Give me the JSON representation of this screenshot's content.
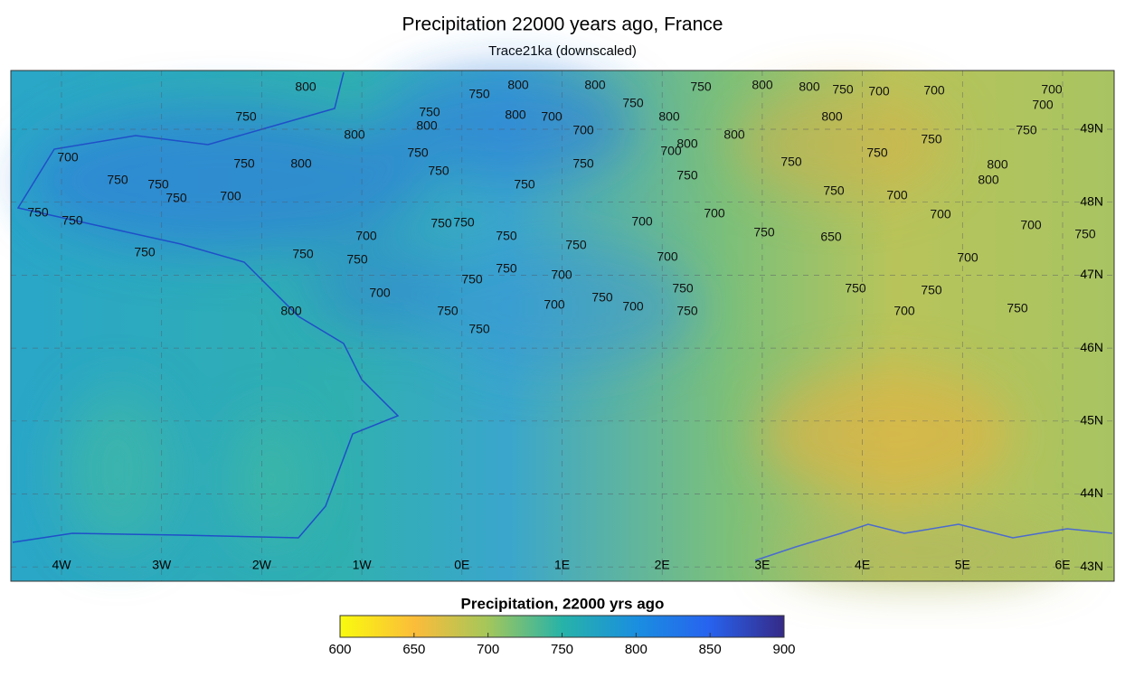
{
  "title": "Precipitation 22000 years ago, France",
  "subtitle": "Trace21ka (downscaled)",
  "lon_labels": [
    "4W",
    "3W",
    "2W",
    "1W",
    "0E",
    "1E",
    "2E",
    "3E",
    "4E",
    "5E",
    "6E"
  ],
  "lat_labels": [
    "49N",
    "48N",
    "47N",
    "46N",
    "45N",
    "44N",
    "43N"
  ],
  "contour_labels": [
    800,
    750,
    800,
    800,
    750,
    800,
    800,
    750,
    700,
    700,
    700,
    700,
    750,
    750,
    800,
    800,
    800,
    700,
    700,
    750,
    800,
    800,
    800,
    800,
    750,
    750,
    700,
    750,
    750,
    750,
    800,
    750,
    750,
    750,
    750,
    700,
    750,
    750,
    750,
    800,
    800,
    750,
    750,
    750,
    700,
    700,
    750,
    750,
    750,
    750,
    700,
    700,
    750,
    750,
    700,
    700,
    750,
    750,
    750,
    700,
    750,
    750,
    700,
    750,
    700,
    750,
    650,
    700,
    700,
    750,
    800,
    750,
    750,
    700,
    700,
    750,
    750,
    700,
    750,
    750
  ],
  "colorbar": {
    "label": "Precipitation, 22000 yrs ago",
    "lim": [
      600,
      900
    ],
    "ticks": [
      600,
      650,
      700,
      750,
      800,
      850,
      900
    ]
  }
}
